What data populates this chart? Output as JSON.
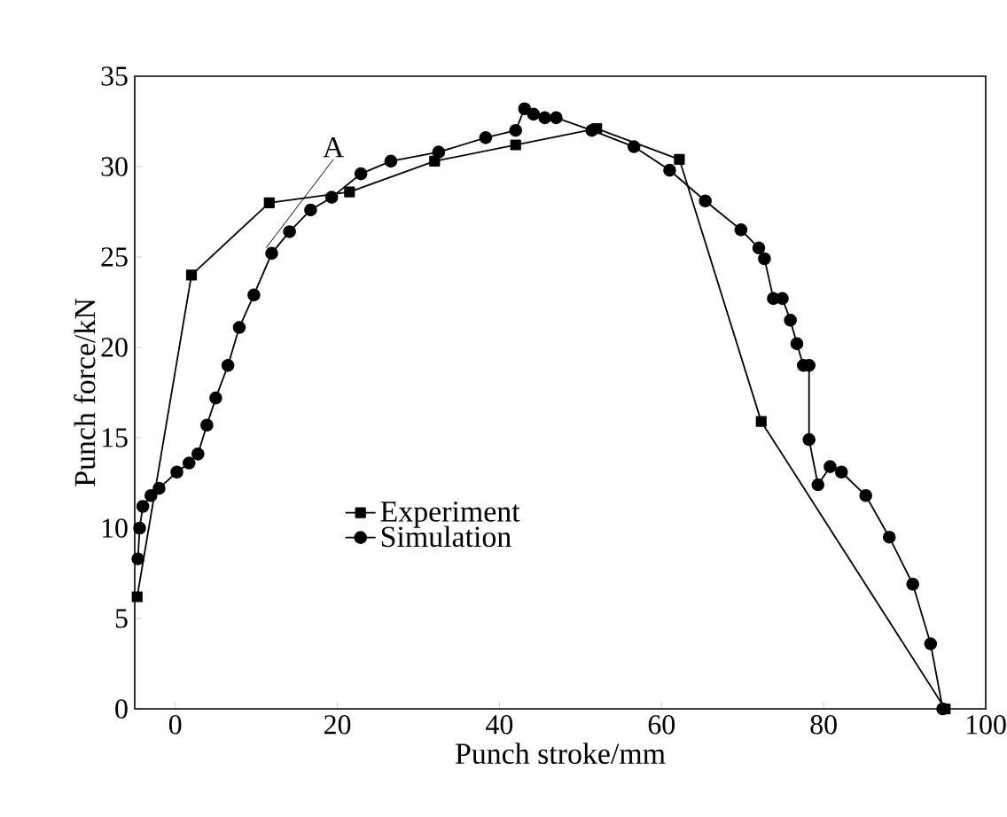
{
  "chart_data": {
    "type": "line",
    "xlabel": "Punch stroke/mm",
    "ylabel": "Punch force/kN",
    "xlim": [
      -5,
      100
    ],
    "ylim": [
      0,
      35
    ],
    "xticks": [
      0,
      20,
      40,
      60,
      80,
      100
    ],
    "yticks": [
      0,
      5,
      10,
      15,
      20,
      25,
      30,
      35
    ],
    "legend": "left",
    "line_style": "solid",
    "annotations": [
      {
        "text": "A",
        "x": 11.2,
        "y": 25.5
      }
    ],
    "series": [
      {
        "name": "Experiment",
        "color": "#000000",
        "marker": "square",
        "x": [
          -4.7,
          2,
          11.6,
          21.5,
          32,
          42,
          52,
          62.2,
          72.3,
          95
        ],
        "values": [
          6.2,
          24,
          28,
          28.6,
          30.3,
          31.2,
          32.1,
          30.4,
          15.9,
          0
        ]
      },
      {
        "name": "Simulation",
        "color": "#000000",
        "marker": "circle",
        "x": [
          -4.6,
          -4.4,
          -4,
          -3,
          -2,
          0.2,
          1.7,
          2.8,
          3.9,
          5,
          6.5,
          7.9,
          9.7,
          11.9,
          14.1,
          16.7,
          19.3,
          22.9,
          26.6,
          32.5,
          38.3,
          42,
          43.1,
          44.2,
          45.6,
          47,
          51.4,
          56.6,
          61,
          65.4,
          69.8,
          72,
          72.7,
          73.8,
          74.9,
          75.9,
          76.7,
          77.5,
          78.2,
          78.2,
          79.3,
          80.8,
          82.2,
          85.2,
          88.1,
          91,
          93.2,
          94.7
        ],
        "values": [
          8.3,
          10,
          11.2,
          11.8,
          12.2,
          13.1,
          13.6,
          14.1,
          15.7,
          17.2,
          19,
          21.1,
          22.9,
          25.2,
          26.4,
          27.6,
          28.3,
          29.6,
          30.3,
          30.8,
          31.6,
          32,
          33.2,
          32.9,
          32.7,
          32.7,
          32,
          31.1,
          29.8,
          28.1,
          26.5,
          25.5,
          24.9,
          22.7,
          22.7,
          21.5,
          20.2,
          19,
          19,
          14.9,
          12.4,
          13.4,
          13.1,
          11.8,
          9.5,
          6.9,
          3.6,
          0
        ]
      }
    ]
  }
}
